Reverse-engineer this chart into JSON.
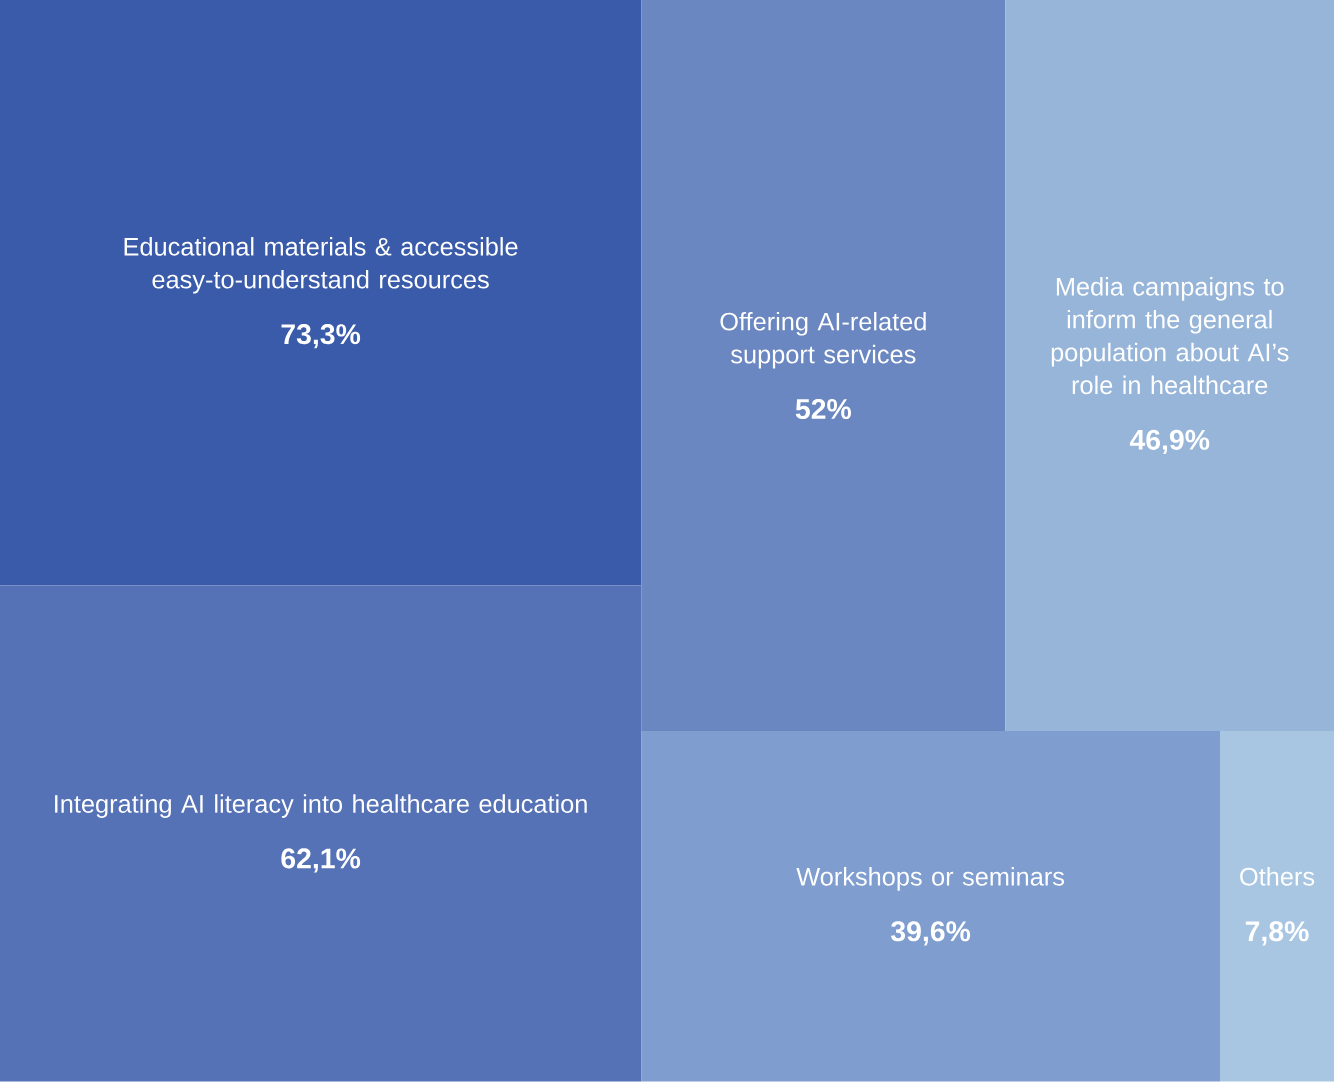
{
  "chart_data": {
    "type": "other",
    "categories": [
      "Educational materials & accessible easy-to-understand resources",
      "Integrating AI literacy into healthcare education",
      "Offering AI-related support services",
      "Media campaigns to inform the general population about AI’s role in healthcare",
      "Workshops or seminars",
      "Others"
    ],
    "values": [
      73.3,
      62.1,
      52,
      46.9,
      39.6,
      7.8
    ],
    "value_labels": [
      "73,3%",
      "62,1%",
      "52%",
      "46,9%",
      "39,6%",
      "7,8%"
    ],
    "colors": [
      "#3a5ba9",
      "#5672b6",
      "#6a87c1",
      "#96b5d9",
      "#7f9dcf",
      "#a8c6e2"
    ]
  }
}
